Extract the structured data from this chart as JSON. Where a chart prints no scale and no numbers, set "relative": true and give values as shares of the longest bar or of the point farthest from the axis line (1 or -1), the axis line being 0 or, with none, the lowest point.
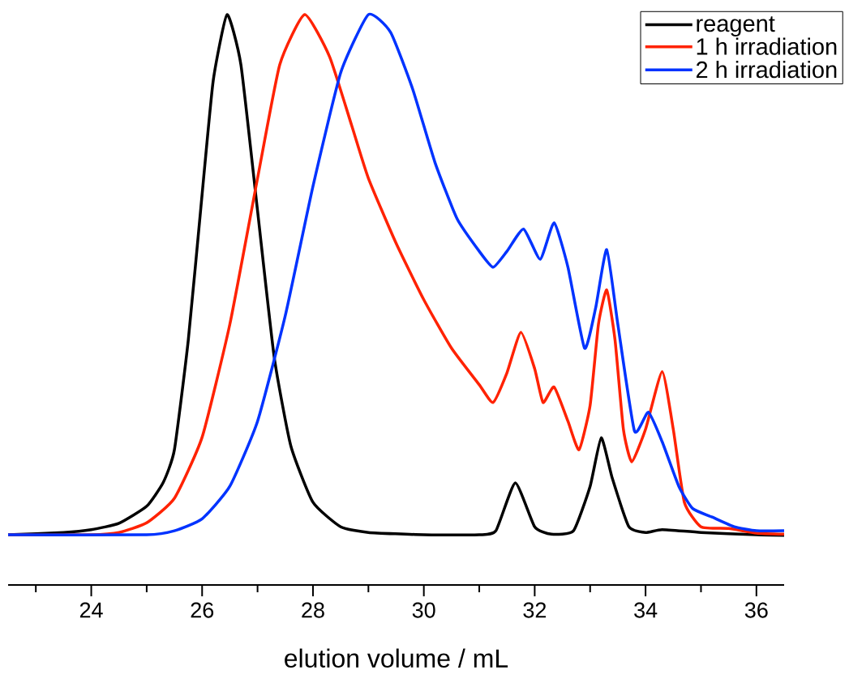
{
  "chart_data": {
    "type": "line",
    "relative": true,
    "xlabel": "elution volume / mL",
    "xlim": [
      22.5,
      36.5
    ],
    "xticks": [
      {
        "value": 23,
        "label": null
      },
      24,
      {
        "value": 25,
        "label": null
      },
      26,
      {
        "value": 27,
        "label": null
      },
      28,
      {
        "value": 29,
        "label": null
      },
      30,
      {
        "value": 31,
        "label": null
      },
      32,
      {
        "value": 33,
        "label": null
      },
      34,
      {
        "value": 35,
        "label": null
      },
      36
    ],
    "legend": "top right",
    "line_style": "solid",
    "marker": "none",
    "series": [
      {
        "name": "reagent",
        "color": "#000000",
        "x": [
          22.5,
          23.5,
          24,
          24.5,
          25,
          25.3,
          25.5,
          25.75,
          26,
          26.2,
          26.45,
          26.7,
          27,
          27.3,
          27.6,
          28,
          28.5,
          29,
          30,
          31,
          31.3,
          31.65,
          32,
          32.3,
          32.7,
          33,
          33.2,
          33.4,
          33.7,
          34,
          34.3,
          35,
          36,
          36.5
        ],
        "values": [
          0.088,
          0.092,
          0.097,
          0.108,
          0.138,
          0.18,
          0.237,
          0.429,
          0.685,
          0.884,
          1,
          0.912,
          0.656,
          0.4,
          0.244,
          0.145,
          0.102,
          0.092,
          0.088,
          0.088,
          0.095,
          0.179,
          0.102,
          0.089,
          0.095,
          0.173,
          0.258,
          0.187,
          0.102,
          0.092,
          0.097,
          0.092,
          0.088,
          0.087
        ]
      },
      {
        "name": "1 h irradiation",
        "color": "#ff2200",
        "x": [
          22.5,
          24,
          24.5,
          25,
          25.5,
          26,
          26.5,
          27,
          27.4,
          27.85,
          28.3,
          28.7,
          29,
          29.5,
          30,
          30.5,
          31,
          31.25,
          31.5,
          31.75,
          32,
          32.15,
          32.35,
          32.6,
          32.8,
          33,
          33.15,
          33.3,
          33.45,
          33.6,
          33.75,
          34,
          34.3,
          34.5,
          34.7,
          35,
          35.5,
          36,
          36.5
        ],
        "values": [
          0.088,
          0.088,
          0.092,
          0.109,
          0.152,
          0.259,
          0.457,
          0.713,
          0.912,
          1,
          0.926,
          0.805,
          0.713,
          0.599,
          0.5,
          0.415,
          0.351,
          0.32,
          0.372,
          0.443,
          0.379,
          0.32,
          0.347,
          0.287,
          0.237,
          0.315,
          0.457,
          0.517,
          0.429,
          0.273,
          0.216,
          0.273,
          0.374,
          0.273,
          0.145,
          0.102,
          0.099,
          0.091,
          0.089
        ]
      },
      {
        "name": "2 h irradiation",
        "color": "#0033ff",
        "x": [
          22.5,
          25,
          25.5,
          26,
          26.5,
          27,
          27.5,
          28,
          28.5,
          29,
          29.4,
          29.8,
          30.2,
          30.6,
          31,
          31.25,
          31.5,
          31.8,
          32.1,
          32.35,
          32.6,
          32.9,
          33.1,
          33.3,
          33.5,
          33.8,
          34.05,
          34.3,
          34.6,
          34.85,
          35.2,
          35.6,
          36,
          36.5
        ],
        "values": [
          0.088,
          0.088,
          0.095,
          0.116,
          0.173,
          0.287,
          0.472,
          0.699,
          0.898,
          1,
          0.969,
          0.869,
          0.741,
          0.642,
          0.585,
          0.557,
          0.585,
          0.624,
          0.571,
          0.635,
          0.557,
          0.415,
          0.486,
          0.588,
          0.457,
          0.27,
          0.303,
          0.251,
          0.173,
          0.134,
          0.119,
          0.102,
          0.095,
          0.095
        ]
      }
    ]
  }
}
